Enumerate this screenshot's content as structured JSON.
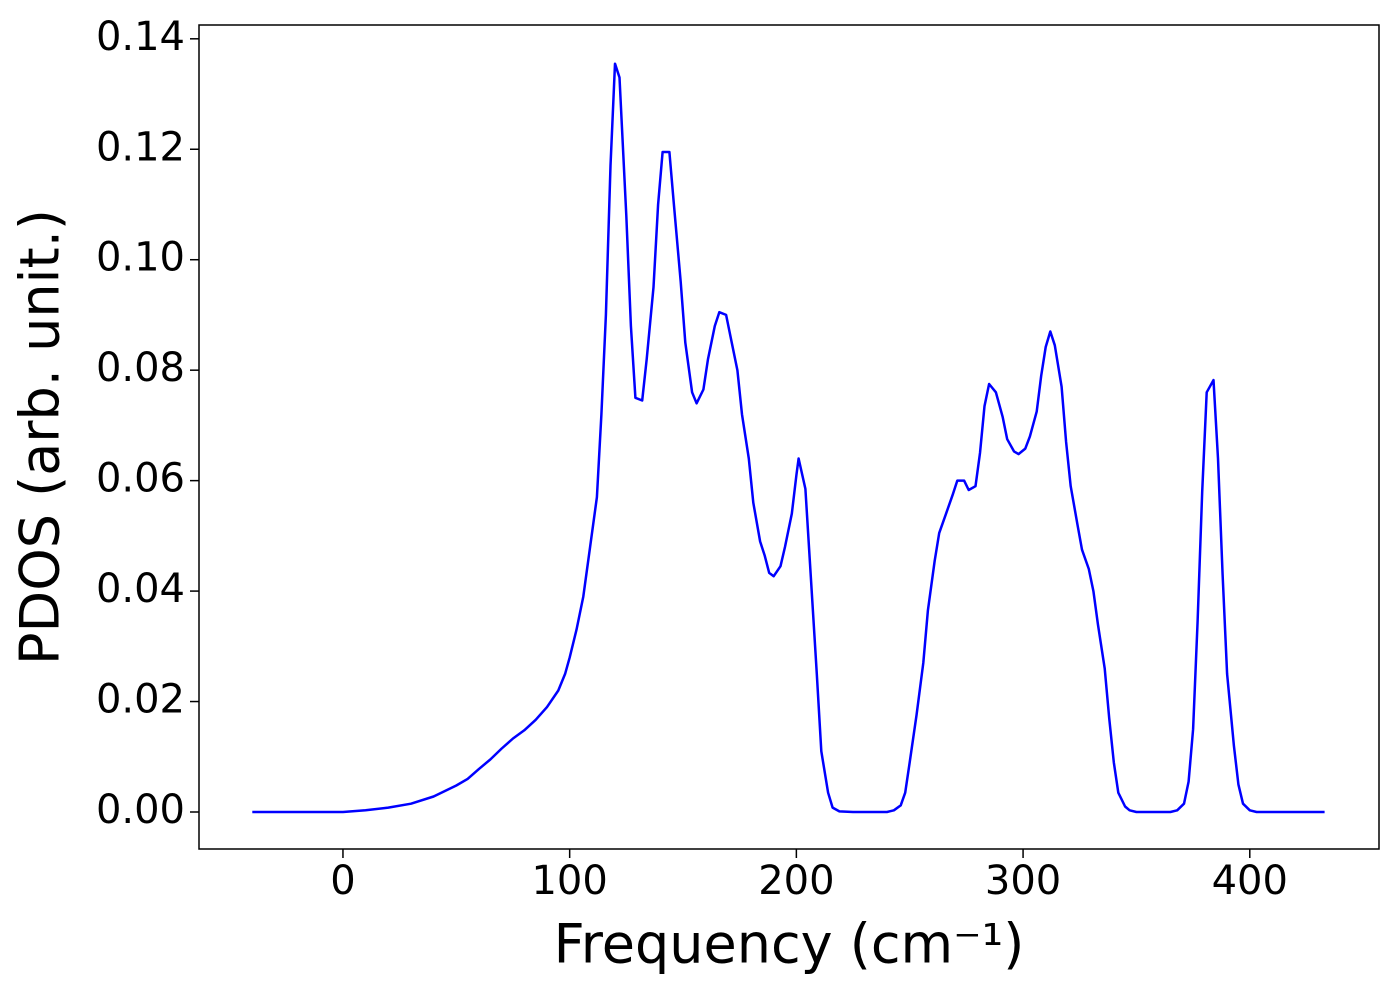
{
  "chart_data": {
    "type": "line",
    "x_label": "Frequency (cm⁻¹)",
    "y_label": "PDOS (arb. unit.)",
    "xlim": [
      -63.5,
      457
    ],
    "ylim": [
      -0.0067,
      0.1425
    ],
    "xticks": [
      0,
      100,
      200,
      300,
      400
    ],
    "yticks": [
      {
        "value": 0,
        "label": "0.00"
      },
      {
        "value": 0.02,
        "label": "0.02"
      },
      {
        "value": 0.04,
        "label": "0.04"
      },
      {
        "value": 0.06,
        "label": "0.06"
      },
      {
        "value": 0.08,
        "label": "0.08"
      },
      {
        "value": 0.1,
        "label": "0.10"
      },
      {
        "value": 0.12,
        "label": "0.12"
      },
      {
        "value": 0.14,
        "label": "0.14"
      }
    ],
    "series": [
      {
        "color": "#0000ff",
        "x": [
          -40,
          0,
          10,
          20,
          30,
          40,
          50,
          55,
          60,
          65,
          70,
          75,
          80,
          85,
          90,
          95,
          98,
          100,
          103,
          106,
          109,
          112,
          114,
          116,
          118,
          120,
          122,
          125,
          127,
          129,
          132,
          134,
          137,
          139,
          141,
          144,
          146,
          149,
          151,
          154,
          156,
          159,
          161,
          164,
          166,
          169,
          171,
          174,
          176,
          179,
          181,
          184,
          186,
          188,
          190,
          193,
          195,
          198,
          200,
          201,
          204,
          206,
          209,
          211,
          214,
          216,
          219,
          225,
          235,
          240,
          243,
          246,
          248,
          250,
          253,
          256,
          258,
          261,
          263,
          266,
          269,
          271,
          274,
          276,
          279,
          281,
          283,
          285,
          288,
          291,
          293,
          296,
          298,
          301,
          303,
          306,
          308,
          310,
          312,
          314,
          317,
          319,
          321,
          324,
          326,
          329,
          331,
          333,
          336,
          338,
          340,
          342,
          345,
          347,
          350,
          365,
          368,
          371,
          373,
          375,
          377,
          379,
          381,
          384,
          386,
          388,
          390,
          393,
          395,
          397,
          400,
          403,
          433
        ],
        "values": [
          0,
          0,
          0.0003,
          0.0008,
          0.0015,
          0.0028,
          0.0048,
          0.006,
          0.0078,
          0.0095,
          0.0115,
          0.0133,
          0.0148,
          0.0167,
          0.019,
          0.022,
          0.025,
          0.028,
          0.033,
          0.039,
          0.048,
          0.057,
          0.072,
          0.09,
          0.117,
          0.1355,
          0.133,
          0.108,
          0.088,
          0.075,
          0.0745,
          0.082,
          0.095,
          0.11,
          0.1195,
          0.1195,
          0.11,
          0.096,
          0.085,
          0.076,
          0.074,
          0.0765,
          0.082,
          0.088,
          0.0905,
          0.09,
          0.086,
          0.08,
          0.072,
          0.064,
          0.056,
          0.049,
          0.0465,
          0.0433,
          0.0427,
          0.0445,
          0.048,
          0.054,
          0.061,
          0.064,
          0.0585,
          0.045,
          0.025,
          0.011,
          0.0035,
          0.0008,
          0.0001,
          0,
          0,
          0,
          0.0003,
          0.0012,
          0.0035,
          0.009,
          0.0175,
          0.027,
          0.0365,
          0.0455,
          0.0505,
          0.054,
          0.0575,
          0.06,
          0.06,
          0.0583,
          0.059,
          0.065,
          0.0735,
          0.0775,
          0.076,
          0.0715,
          0.0675,
          0.0653,
          0.0648,
          0.0658,
          0.068,
          0.0725,
          0.079,
          0.0842,
          0.087,
          0.0845,
          0.077,
          0.067,
          0.059,
          0.052,
          0.0475,
          0.044,
          0.04,
          0.034,
          0.026,
          0.017,
          0.009,
          0.0035,
          0.001,
          0.0003,
          0,
          0,
          0.0003,
          0.0015,
          0.0055,
          0.015,
          0.0345,
          0.058,
          0.076,
          0.0782,
          0.064,
          0.043,
          0.025,
          0.012,
          0.005,
          0.0015,
          0.0003,
          0,
          0
        ]
      }
    ]
  }
}
